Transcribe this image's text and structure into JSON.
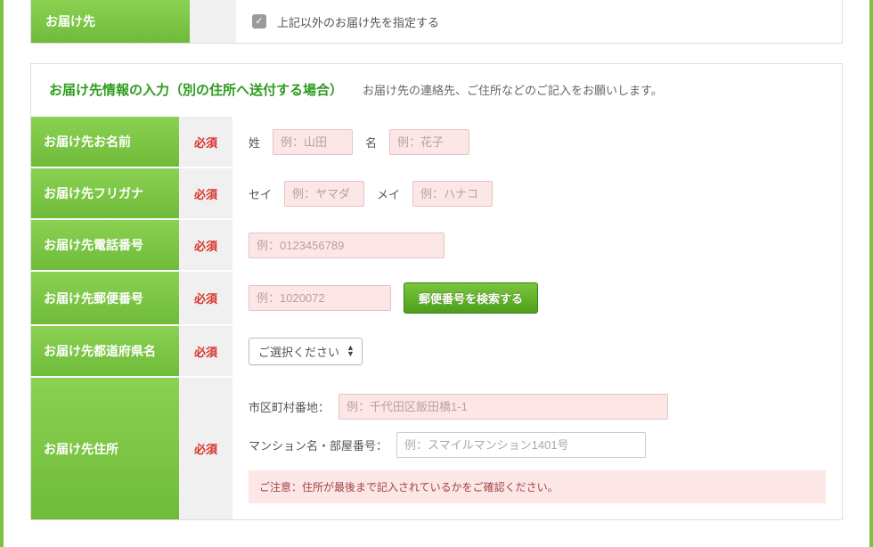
{
  "colors": {
    "green_side": "#7bc143",
    "green_grad_top": "#8bd152",
    "green_grad_bot": "#6fbb3a",
    "title_green": "#2e9b1f",
    "required_red": "#d9322b",
    "pink_bg": "#fde6e6",
    "grey_cell": "#f0f0f0",
    "border": "#dddddd"
  },
  "top_block": {
    "label": "お届け先",
    "checkbox_text": "上記以外のお届け先を指定する",
    "checkbox_checked": true
  },
  "section": {
    "title": "お届け先情報の入力（別の住所へ送付する場合）",
    "subtitle": "お届け先の連絡先、ご住所などのご記入をお願いします。"
  },
  "required_label": "必須",
  "rows": {
    "name": {
      "label": "お届け先お名前",
      "sei_label": "姓",
      "sei_placeholder": "例：山田",
      "mei_label": "名",
      "mei_placeholder": "例：花子"
    },
    "furigana": {
      "label": "お届け先フリガナ",
      "sei_label": "セイ",
      "sei_placeholder": "例：ヤマダ",
      "mei_label": "メイ",
      "mei_placeholder": "例：ハナコ"
    },
    "phone": {
      "label": "お届け先電話番号",
      "placeholder": "例：0123456789"
    },
    "postal": {
      "label": "お届け先郵便番号",
      "placeholder": "例：1020072",
      "button": "郵便番号を検索する"
    },
    "prefecture": {
      "label": "お届け先都道府県名",
      "select_placeholder": "ご選択ください"
    },
    "address": {
      "label": "お届け先住所",
      "addr1_label": "市区町村番地：",
      "addr1_placeholder": "例：千代田区飯田橋1-1",
      "addr2_label": "マンション名・部屋番号：",
      "addr2_placeholder": "例：スマイルマンション1401号",
      "note": "ご注意：住所が最後まで記入されているかをご確認ください。"
    }
  }
}
